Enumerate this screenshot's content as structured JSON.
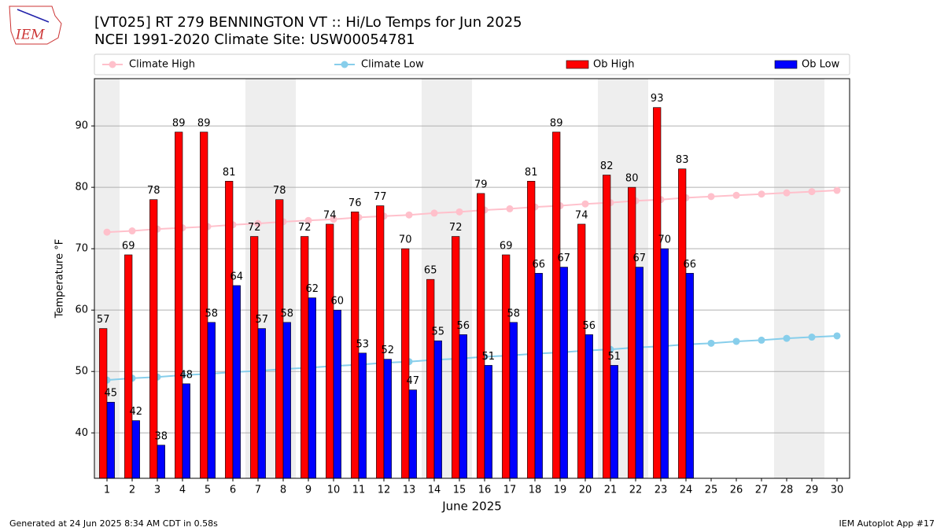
{
  "chart_data": {
    "type": "bar",
    "title": "[VT025] RT 279 BENNINGTON  VT :: Hi/Lo Temps for Jun 2025",
    "subtitle": "NCEI 1991-2020 Climate Site: USW00054781",
    "logo_text": "IEM",
    "xlabel": "June 2025",
    "ylabel": "Temperature °F",
    "footer_left": "Generated at 24 Jun 2025 8:34 AM CDT in 0.58s",
    "footer_right": "IEM Autoplot App #17",
    "x": [
      1,
      2,
      3,
      4,
      5,
      6,
      7,
      8,
      9,
      10,
      11,
      12,
      13,
      14,
      15,
      16,
      17,
      18,
      19,
      20,
      21,
      22,
      23,
      24,
      25,
      26,
      27,
      28,
      29,
      30
    ],
    "xlim": [
      0.5,
      30.5
    ],
    "xticks": [
      1,
      2,
      3,
      4,
      5,
      6,
      7,
      8,
      9,
      10,
      11,
      12,
      13,
      14,
      15,
      16,
      17,
      18,
      19,
      20,
      21,
      22,
      23,
      24,
      25,
      26,
      27,
      28,
      29,
      30
    ],
    "ylim": [
      32.6,
      97.7
    ],
    "yticks": [
      40,
      50,
      60,
      70,
      80,
      90
    ],
    "grid": "y",
    "shaded": [
      1,
      7,
      8,
      14,
      15,
      21,
      22,
      28,
      29
    ],
    "shade_color": "#eeeeee",
    "legend": "top",
    "series": [
      {
        "name": "Climate High",
        "type": "line",
        "color": "#ffc0cb",
        "values": [
          72.7,
          72.9,
          73.2,
          73.4,
          73.6,
          73.9,
          74.1,
          74.4,
          74.6,
          74.8,
          75.1,
          75.3,
          75.5,
          75.8,
          76.0,
          76.3,
          76.5,
          76.8,
          77.0,
          77.3,
          77.5,
          77.8,
          78.0,
          78.3,
          78.5,
          78.7,
          78.9,
          79.1,
          79.3,
          79.5
        ]
      },
      {
        "name": "Climate Low",
        "type": "line",
        "color": "#87ceeb",
        "values": [
          48.6,
          48.9,
          49.1,
          49.4,
          49.6,
          49.9,
          50.1,
          50.4,
          50.6,
          50.9,
          51.1,
          51.4,
          51.6,
          51.9,
          52.1,
          52.4,
          52.6,
          52.9,
          53.1,
          53.4,
          53.6,
          53.9,
          54.1,
          54.4,
          54.6,
          54.9,
          55.1,
          55.4,
          55.6,
          55.8
        ]
      },
      {
        "name": "Ob High",
        "type": "bar",
        "color": "#ff0000",
        "values": [
          57,
          69,
          78,
          89,
          89,
          81,
          72,
          78,
          72,
          74,
          76,
          77,
          70,
          65,
          72,
          79,
          69,
          81,
          89,
          74,
          82,
          80,
          93,
          83,
          null,
          null,
          null,
          null,
          null,
          null
        ]
      },
      {
        "name": "Ob Low",
        "type": "bar",
        "color": "#0000ff",
        "values": [
          45,
          42,
          38,
          48,
          58,
          64,
          57,
          58,
          62,
          60,
          53,
          52,
          47,
          55,
          56,
          51,
          58,
          66,
          67,
          56,
          51,
          67,
          70,
          66,
          null,
          null,
          null,
          null,
          null,
          null
        ]
      }
    ]
  }
}
